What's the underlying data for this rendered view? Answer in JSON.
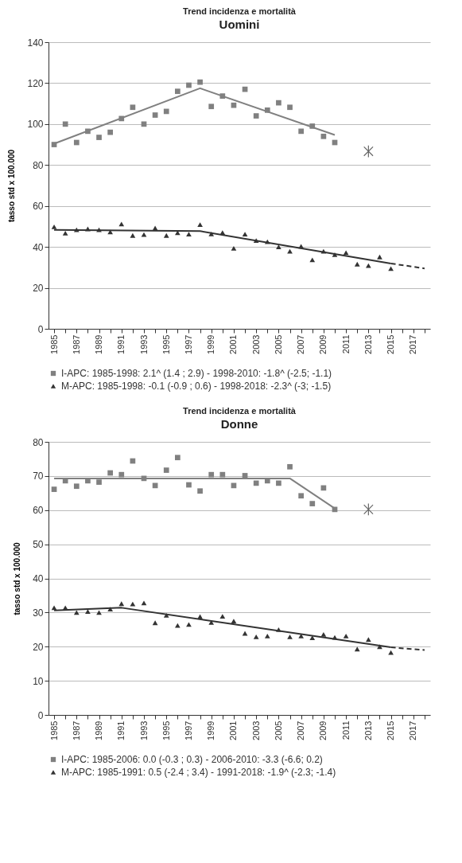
{
  "chart_data": [
    {
      "type": "scatter",
      "title": "Trend incidenza e mortalità",
      "subtitle": "Uomini",
      "ylabel": "tasso std x 100.000",
      "xlim": [
        1984.5,
        2018.5
      ],
      "ylim": [
        0,
        140
      ],
      "yticks": [
        0,
        20,
        40,
        60,
        80,
        100,
        120,
        140
      ],
      "xticks": [
        1985,
        {
          "value": 1986,
          "label": null
        },
        1987,
        {
          "value": 1988,
          "label": null
        },
        1989,
        {
          "value": 1990,
          "label": null
        },
        1991,
        {
          "value": 1992,
          "label": null
        },
        1993,
        {
          "value": 1994,
          "label": null
        },
        1995,
        {
          "value": 1996,
          "label": null
        },
        1997,
        {
          "value": 1998,
          "label": null
        },
        1999,
        {
          "value": 2000,
          "label": null
        },
        2001,
        {
          "value": 2002,
          "label": null
        },
        2003,
        {
          "value": 2004,
          "label": null
        },
        2005,
        {
          "value": 2006,
          "label": null
        },
        2007,
        {
          "value": 2008,
          "label": null
        },
        2009,
        {
          "value": 2010,
          "label": null
        },
        2011,
        {
          "value": 2012,
          "label": null
        },
        2013,
        {
          "value": 2014,
          "label": null
        },
        2015,
        {
          "value": 2016,
          "label": null
        },
        2017,
        {
          "value": 2018,
          "label": null
        }
      ],
      "grid": "y",
      "legend": "bottom",
      "series": [
        {
          "name": "I-APC: 1985-1998: 2.1^ (1.4 ; 2.9) -  1998-2010: -1.8^ (-2.5; -1.1)",
          "marker": "square",
          "color": "#808080",
          "x": [
            1985,
            1986,
            1987,
            1988,
            1989,
            1990,
            1991,
            1992,
            1993,
            1994,
            1995,
            1996,
            1997,
            1998,
            1999,
            2000,
            2001,
            2002,
            2003,
            2004,
            2005,
            2006,
            2007,
            2008,
            2009,
            2010
          ],
          "values": [
            90,
            100,
            91,
            96.5,
            93.5,
            96,
            102.7,
            108.2,
            100,
            104.4,
            106.2,
            116,
            119,
            120.5,
            108.6,
            113.7,
            109.2,
            117,
            104,
            106.8,
            110.4,
            108.2,
            96.5,
            99,
            94,
            91
          ]
        },
        {
          "name": "M-APC: 1985-1998: -0.1 (-0.9 ; 0.6) - 1998-2018: -2.3^ (-3; -1.5)",
          "marker": "triangle",
          "color": "#333333",
          "x": [
            1985,
            1986,
            1987,
            1988,
            1989,
            1990,
            1991,
            1992,
            1993,
            1994,
            1995,
            1996,
            1997,
            1998,
            1999,
            2000,
            2001,
            2002,
            2003,
            2004,
            2005,
            2006,
            2007,
            2008,
            2009,
            2010,
            2011,
            2012,
            2013,
            2014,
            2015
          ],
          "values": [
            49.8,
            46.7,
            48.4,
            48.8,
            48.4,
            47.3,
            51.2,
            45.6,
            46,
            49.2,
            45.6,
            46.9,
            46.2,
            50.9,
            46.3,
            47,
            39.3,
            46.2,
            43.1,
            42.5,
            40,
            37.9,
            40.3,
            33.7,
            37.9,
            36.2,
            37.2,
            31.6,
            30.9,
            35.1,
            29.4
          ]
        },
        {
          "type": "line",
          "marker": "none",
          "line_style": "solid",
          "color": "#808080",
          "x": [
            1985,
            1998,
            2010
          ],
          "values": [
            90.4,
            117.5,
            94.7
          ]
        },
        {
          "type": "line",
          "marker": "none",
          "line_style": "solid",
          "color": "#333333",
          "x": [
            1985,
            1998,
            2015
          ],
          "values": [
            48.3,
            47.7,
            31.9
          ]
        },
        {
          "type": "line",
          "marker": "none",
          "line_style": "dashed",
          "color": "#333333",
          "x": [
            2015,
            2018
          ],
          "values": [
            31.9,
            29.5
          ]
        },
        {
          "marker": "cross",
          "color": "#666666",
          "x": [
            2013
          ],
          "values": [
            86.7
          ]
        }
      ]
    },
    {
      "type": "scatter",
      "title": "Trend incidenza e mortalità",
      "subtitle": "Donne",
      "ylabel": "tasso std x 100.000",
      "xlim": [
        1984.5,
        2018.5
      ],
      "ylim": [
        0,
        80
      ],
      "yticks": [
        0,
        10,
        20,
        30,
        40,
        50,
        60,
        70,
        80
      ],
      "xticks": [
        1985,
        {
          "value": 1986,
          "label": null
        },
        1987,
        {
          "value": 1988,
          "label": null
        },
        1989,
        {
          "value": 1990,
          "label": null
        },
        1991,
        {
          "value": 1992,
          "label": null
        },
        1993,
        {
          "value": 1994,
          "label": null
        },
        1995,
        {
          "value": 1996,
          "label": null
        },
        1997,
        {
          "value": 1998,
          "label": null
        },
        1999,
        {
          "value": 2000,
          "label": null
        },
        2001,
        {
          "value": 2002,
          "label": null
        },
        2003,
        {
          "value": 2004,
          "label": null
        },
        2005,
        {
          "value": 2006,
          "label": null
        },
        2007,
        {
          "value": 2008,
          "label": null
        },
        2009,
        {
          "value": 2010,
          "label": null
        },
        2011,
        {
          "value": 2012,
          "label": null
        },
        2013,
        {
          "value": 2014,
          "label": null
        },
        2015,
        {
          "value": 2016,
          "label": null
        },
        2017,
        {
          "value": 2018,
          "label": null
        }
      ],
      "grid": "y",
      "legend": "bottom",
      "series": [
        {
          "name": "I-APC: 1985-2006: 0.0 (-0.3 ; 0.3) -  2006-2010: -3.3 (-6.6; 0.2)",
          "marker": "square",
          "color": "#808080",
          "x": [
            1985,
            1986,
            1987,
            1988,
            1989,
            1990,
            1991,
            1992,
            1993,
            1994,
            1995,
            1996,
            1997,
            1998,
            1999,
            2000,
            2001,
            2002,
            2003,
            2004,
            2005,
            2006,
            2007,
            2008,
            2009,
            2010
          ],
          "values": [
            66.1,
            68.6,
            67,
            68.6,
            68.2,
            70.9,
            70.4,
            74.4,
            69.3,
            67.2,
            71.7,
            75.4,
            67.4,
            65.6,
            70.4,
            70.4,
            67.2,
            70.1,
            67.9,
            68.6,
            67.9,
            72.7,
            64.2,
            61.9,
            66.5,
            60.2
          ]
        },
        {
          "name": "M-APC: 1985-1991: 0.5 (-2.4 ; 3.4) - 1991-2018: -1.9^ (-2.3; -1.4)",
          "marker": "triangle",
          "color": "#333333",
          "x": [
            1985,
            1986,
            1987,
            1988,
            1989,
            1990,
            1991,
            1992,
            1993,
            1994,
            1995,
            1996,
            1997,
            1998,
            1999,
            2000,
            2001,
            2002,
            2003,
            2004,
            2005,
            2006,
            2007,
            2008,
            2009,
            2010,
            2011,
            2012,
            2013,
            2014,
            2015
          ],
          "values": [
            31.4,
            31.4,
            30,
            30.3,
            30,
            31,
            32.6,
            32.5,
            32.8,
            27,
            29.2,
            26.2,
            26.5,
            28.8,
            27.1,
            28.9,
            27.5,
            23.9,
            22.9,
            23.1,
            25,
            22.9,
            23.1,
            22.6,
            23.6,
            22.7,
            23.1,
            19.3,
            22.1,
            20,
            18.3
          ]
        },
        {
          "type": "line",
          "marker": "none",
          "line_style": "solid",
          "color": "#808080",
          "x": [
            1985,
            2006,
            2010
          ],
          "values": [
            69.3,
            69.3,
            60.5
          ]
        },
        {
          "type": "line",
          "marker": "none",
          "line_style": "solid",
          "color": "#333333",
          "x": [
            1985,
            1991,
            2015
          ],
          "values": [
            30.6,
            31.4,
            19.8
          ]
        },
        {
          "type": "line",
          "marker": "none",
          "line_style": "dashed",
          "color": "#333333",
          "x": [
            2015,
            2018
          ],
          "values": [
            19.8,
            19
          ]
        },
        {
          "marker": "cross",
          "color": "#666666",
          "x": [
            2013
          ],
          "values": [
            60.2
          ]
        }
      ]
    }
  ]
}
